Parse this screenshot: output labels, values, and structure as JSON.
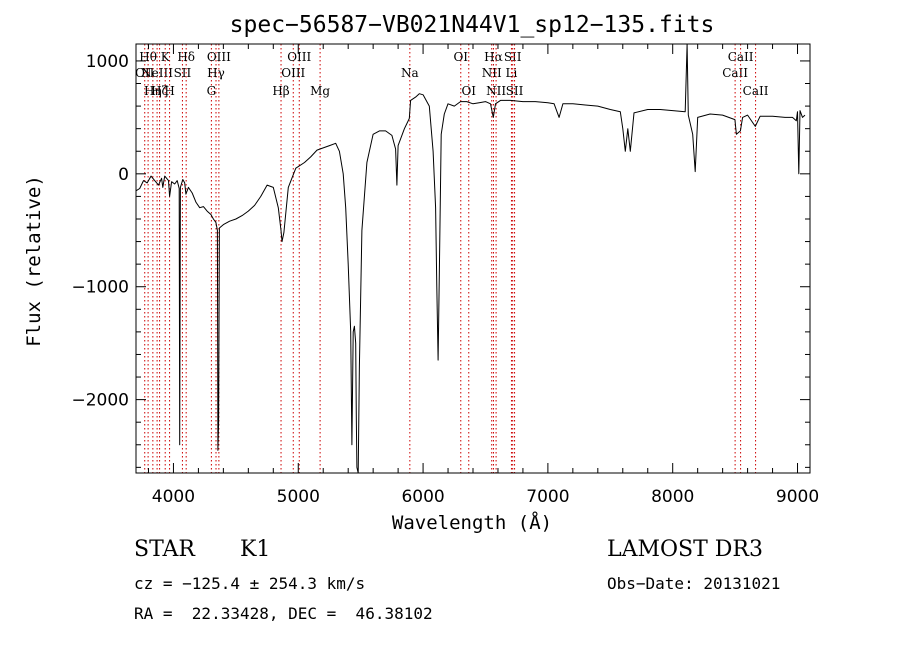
{
  "chart_data": {
    "type": "line",
    "title": "spec−56587−VB021N44V1_sp12−135.fits",
    "xlabel": "Wavelength (Å)",
    "ylabel": "Flux (relative)",
    "xlim": [
      3700,
      9100
    ],
    "ylim": [
      -2650,
      1150
    ],
    "x_ticks": [
      4000,
      5000,
      6000,
      7000,
      8000,
      9000
    ],
    "y_ticks": [
      -2000,
      -1000,
      0,
      1000
    ],
    "y_tick_labels": [
      "−2000",
      "−1000",
      "0",
      "1000"
    ],
    "grid": false,
    "line_color": "#000000",
    "marker_color": "#cc0000",
    "series": [
      {
        "points": [
          [
            3700,
            -150
          ],
          [
            3730,
            -130
          ],
          [
            3760,
            -60
          ],
          [
            3790,
            -80
          ],
          [
            3820,
            -20
          ],
          [
            3850,
            -60
          ],
          [
            3880,
            -100
          ],
          [
            3905,
            -40
          ],
          [
            3915,
            -120
          ],
          [
            3930,
            -20
          ],
          [
            3960,
            -60
          ],
          [
            3969,
            -200
          ],
          [
            3985,
            -70
          ],
          [
            4010,
            -90
          ],
          [
            4030,
            -60
          ],
          [
            4046,
            -130
          ],
          [
            4050,
            -2400
          ],
          [
            4056,
            -120
          ],
          [
            4075,
            -50
          ],
          [
            4090,
            -80
          ],
          [
            4100,
            -180
          ],
          [
            4120,
            -120
          ],
          [
            4150,
            -170
          ],
          [
            4180,
            -250
          ],
          [
            4210,
            -300
          ],
          [
            4240,
            -290
          ],
          [
            4270,
            -330
          ],
          [
            4300,
            -360
          ],
          [
            4320,
            -400
          ],
          [
            4340,
            -430
          ],
          [
            4352,
            -500
          ],
          [
            4356,
            -2450
          ],
          [
            4362,
            -2200
          ],
          [
            4368,
            -480
          ],
          [
            4400,
            -450
          ],
          [
            4450,
            -420
          ],
          [
            4500,
            -400
          ],
          [
            4550,
            -370
          ],
          [
            4600,
            -330
          ],
          [
            4650,
            -280
          ],
          [
            4700,
            -200
          ],
          [
            4750,
            -100
          ],
          [
            4800,
            -120
          ],
          [
            4840,
            -300
          ],
          [
            4862,
            -500
          ],
          [
            4870,
            -600
          ],
          [
            4885,
            -520
          ],
          [
            4920,
            -120
          ],
          [
            4980,
            50
          ],
          [
            5050,
            100
          ],
          [
            5100,
            150
          ],
          [
            5150,
            210
          ],
          [
            5200,
            230
          ],
          [
            5250,
            250
          ],
          [
            5300,
            270
          ],
          [
            5330,
            200
          ],
          [
            5360,
            0
          ],
          [
            5380,
            -300
          ],
          [
            5400,
            -800
          ],
          [
            5420,
            -1400
          ],
          [
            5430,
            -2400
          ],
          [
            5440,
            -1400
          ],
          [
            5450,
            -1350
          ],
          [
            5460,
            -1500
          ],
          [
            5465,
            -2150
          ],
          [
            5470,
            -2600
          ],
          [
            5480,
            -2650
          ],
          [
            5490,
            -1700
          ],
          [
            5510,
            -500
          ],
          [
            5550,
            100
          ],
          [
            5600,
            350
          ],
          [
            5650,
            380
          ],
          [
            5700,
            380
          ],
          [
            5750,
            340
          ],
          [
            5780,
            220
          ],
          [
            5790,
            -100
          ],
          [
            5800,
            250
          ],
          [
            5850,
            400
          ],
          [
            5890,
            490
          ],
          [
            5900,
            650
          ],
          [
            5940,
            680
          ],
          [
            5970,
            710
          ],
          [
            6000,
            700
          ],
          [
            6050,
            600
          ],
          [
            6080,
            200
          ],
          [
            6100,
            -300
          ],
          [
            6110,
            -1000
          ],
          [
            6120,
            -1650
          ],
          [
            6130,
            -900
          ],
          [
            6145,
            350
          ],
          [
            6170,
            530
          ],
          [
            6200,
            620
          ],
          [
            6250,
            600
          ],
          [
            6300,
            640
          ],
          [
            6350,
            640
          ],
          [
            6400,
            620
          ],
          [
            6450,
            630
          ],
          [
            6500,
            640
          ],
          [
            6540,
            620
          ],
          [
            6563,
            500
          ],
          [
            6580,
            620
          ],
          [
            6620,
            650
          ],
          [
            6700,
            650
          ],
          [
            6800,
            640
          ],
          [
            6900,
            640
          ],
          [
            7000,
            630
          ],
          [
            7050,
            620
          ],
          [
            7090,
            500
          ],
          [
            7120,
            620
          ],
          [
            7200,
            620
          ],
          [
            7300,
            610
          ],
          [
            7400,
            600
          ],
          [
            7500,
            570
          ],
          [
            7580,
            550
          ],
          [
            7600,
            400
          ],
          [
            7620,
            200
          ],
          [
            7640,
            400
          ],
          [
            7660,
            200
          ],
          [
            7690,
            540
          ],
          [
            7800,
            570
          ],
          [
            7900,
            570
          ],
          [
            8000,
            560
          ],
          [
            8100,
            550
          ],
          [
            8115,
            1150
          ],
          [
            8125,
            520
          ],
          [
            8160,
            350
          ],
          [
            8180,
            20
          ],
          [
            8200,
            500
          ],
          [
            8300,
            530
          ],
          [
            8400,
            520
          ],
          [
            8498,
            480
          ],
          [
            8510,
            350
          ],
          [
            8542,
            380
          ],
          [
            8560,
            500
          ],
          [
            8600,
            520
          ],
          [
            8662,
            420
          ],
          [
            8700,
            510
          ],
          [
            8800,
            510
          ],
          [
            8900,
            500
          ],
          [
            8960,
            500
          ],
          [
            8990,
            470
          ],
          [
            9000,
            550
          ],
          [
            9010,
            0
          ],
          [
            9020,
            560
          ],
          [
            9040,
            500
          ],
          [
            9060,
            520
          ]
        ]
      }
    ],
    "line_markers": [
      {
        "x": 3770,
        "label": "OII",
        "row": 1
      },
      {
        "x": 3797,
        "label": "Hθ",
        "row": 0
      },
      {
        "x": 3835,
        "label": "Hη",
        "row": 2
      },
      {
        "x": 3869,
        "label": "NeIII",
        "row": 1
      },
      {
        "x": 3889,
        "label": "Hζ",
        "row": 2
      },
      {
        "x": 3934,
        "label": "K",
        "row": 0
      },
      {
        "x": 3969,
        "label": "H",
        "row": 2
      },
      {
        "x": 4072,
        "label": "SII",
        "row": 1
      },
      {
        "x": 4102,
        "label": "Hδ",
        "row": 0
      },
      {
        "x": 4304,
        "label": "G",
        "row": 2
      },
      {
        "x": 4341,
        "label": "Hγ",
        "row": 1
      },
      {
        "x": 4364,
        "label": "OIII",
        "row": 0
      },
      {
        "x": 4862,
        "label": "Hβ",
        "row": 2
      },
      {
        "x": 4960,
        "label": "OIII",
        "row": 1
      },
      {
        "x": 5008,
        "label": "OIII",
        "row": 0
      },
      {
        "x": 5175,
        "label": "Mg",
        "row": 2
      },
      {
        "x": 5894,
        "label": "Na",
        "row": 1
      },
      {
        "x": 6302,
        "label": "OI",
        "row": 0
      },
      {
        "x": 6366,
        "label": "OI",
        "row": 2
      },
      {
        "x": 6550,
        "label": "NII",
        "row": 1
      },
      {
        "x": 6564,
        "label": "Hα",
        "row": 0
      },
      {
        "x": 6585,
        "label": "NII",
        "row": 2
      },
      {
        "x": 6708,
        "label": "Li",
        "row": 1
      },
      {
        "x": 6718,
        "label": "SII",
        "row": 0
      },
      {
        "x": 6733,
        "label": "SII",
        "row": 2
      },
      {
        "x": 8500,
        "label": "CaII",
        "row": 1
      },
      {
        "x": 8544,
        "label": "CaII",
        "row": 0
      },
      {
        "x": 8664,
        "label": "CaII",
        "row": 2
      }
    ]
  },
  "info": {
    "class": "STAR",
    "subclass": "K1",
    "survey": "LAMOST DR3",
    "cz": "cz = −125.4 ± 254.3 km/s",
    "obs_date": "Obs−Date: 20131021",
    "radec": "RA =  22.33428, DEC =  46.38102"
  }
}
